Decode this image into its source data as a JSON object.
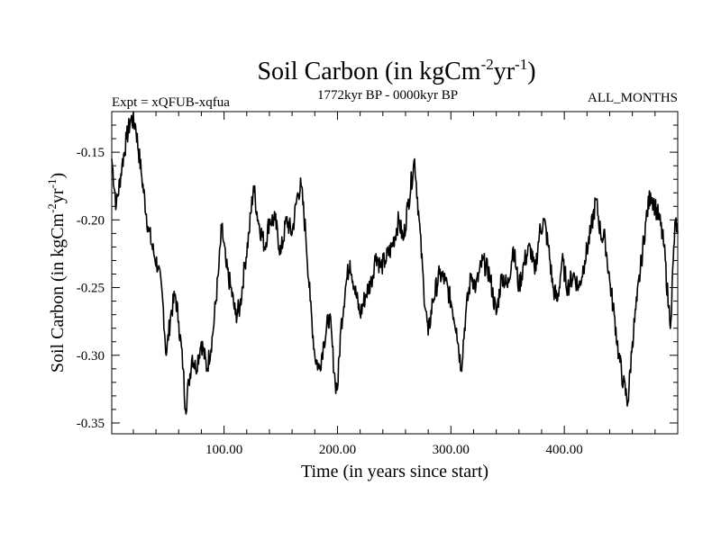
{
  "chart_data": {
    "type": "line",
    "title": "Soil Carbon (in kgCm",
    "title_units": {
      "sup1": "-2",
      "mid": "yr",
      "sup2": "-1",
      "end": ")"
    },
    "subtitle_left": "Expt = xQFUB-xqfua",
    "subtitle_center": "1772kyr BP - 0000kyr BP",
    "subtitle_right": "ALL_MONTHS",
    "xlabel": "Time (in years since start)",
    "ylabel": "Soil Carbon (in kgCm",
    "ylabel_units": {
      "sup1": "-2",
      "mid": "yr",
      "sup2": "-1",
      "end": ")"
    },
    "xlim": [
      1,
      500
    ],
    "ylim": [
      -0.358,
      -0.12
    ],
    "x_ticks": [
      100,
      200,
      300,
      400
    ],
    "x_tick_labels": [
      "100.00",
      "200.00",
      "300.00",
      "400.00"
    ],
    "y_ticks": [
      -0.15,
      -0.2,
      -0.25,
      -0.3,
      -0.35
    ],
    "y_tick_labels": [
      "-0.15",
      "-0.20",
      "-0.25",
      "-0.30",
      "-0.35"
    ],
    "x_minor_step": 20,
    "y_minor_step": 0.01,
    "series": [
      {
        "name": "Soil Carbon",
        "color": "#000000",
        "anchors": [
          [
            1,
            -0.155
          ],
          [
            5,
            -0.19
          ],
          [
            10,
            -0.16
          ],
          [
            14,
            -0.14
          ],
          [
            18,
            -0.125
          ],
          [
            22,
            -0.13
          ],
          [
            27,
            -0.165
          ],
          [
            33,
            -0.205
          ],
          [
            38,
            -0.225
          ],
          [
            42,
            -0.235
          ],
          [
            46,
            -0.26
          ],
          [
            49,
            -0.3
          ],
          [
            53,
            -0.27
          ],
          [
            57,
            -0.255
          ],
          [
            60,
            -0.275
          ],
          [
            64,
            -0.31
          ],
          [
            66,
            -0.34
          ],
          [
            69,
            -0.32
          ],
          [
            72,
            -0.3
          ],
          [
            75,
            -0.31
          ],
          [
            80,
            -0.29
          ],
          [
            85,
            -0.31
          ],
          [
            90,
            -0.285
          ],
          [
            95,
            -0.24
          ],
          [
            98,
            -0.205
          ],
          [
            102,
            -0.235
          ],
          [
            106,
            -0.25
          ],
          [
            110,
            -0.27
          ],
          [
            114,
            -0.265
          ],
          [
            118,
            -0.235
          ],
          [
            122,
            -0.21
          ],
          [
            126,
            -0.175
          ],
          [
            130,
            -0.2
          ],
          [
            136,
            -0.22
          ],
          [
            140,
            -0.2
          ],
          [
            145,
            -0.2
          ],
          [
            150,
            -0.225
          ],
          [
            155,
            -0.2
          ],
          [
            160,
            -0.21
          ],
          [
            165,
            -0.18
          ],
          [
            168,
            -0.175
          ],
          [
            172,
            -0.21
          ],
          [
            176,
            -0.26
          ],
          [
            180,
            -0.3
          ],
          [
            184,
            -0.31
          ],
          [
            188,
            -0.29
          ],
          [
            193,
            -0.27
          ],
          [
            198,
            -0.32
          ],
          [
            200,
            -0.325
          ],
          [
            203,
            -0.28
          ],
          [
            207,
            -0.25
          ],
          [
            211,
            -0.23
          ],
          [
            215,
            -0.25
          ],
          [
            220,
            -0.27
          ],
          [
            225,
            -0.255
          ],
          [
            230,
            -0.245
          ],
          [
            234,
            -0.225
          ],
          [
            238,
            -0.235
          ],
          [
            242,
            -0.23
          ],
          [
            248,
            -0.22
          ],
          [
            254,
            -0.2
          ],
          [
            258,
            -0.215
          ],
          [
            262,
            -0.19
          ],
          [
            268,
            -0.155
          ],
          [
            272,
            -0.2
          ],
          [
            276,
            -0.25
          ],
          [
            280,
            -0.285
          ],
          [
            284,
            -0.26
          ],
          [
            290,
            -0.24
          ],
          [
            295,
            -0.245
          ],
          [
            300,
            -0.26
          ],
          [
            305,
            -0.28
          ],
          [
            309,
            -0.31
          ],
          [
            313,
            -0.27
          ],
          [
            318,
            -0.24
          ],
          [
            322,
            -0.25
          ],
          [
            328,
            -0.23
          ],
          [
            334,
            -0.24
          ],
          [
            340,
            -0.27
          ],
          [
            345,
            -0.24
          ],
          [
            350,
            -0.25
          ],
          [
            355,
            -0.22
          ],
          [
            360,
            -0.25
          ],
          [
            365,
            -0.23
          ],
          [
            370,
            -0.22
          ],
          [
            374,
            -0.24
          ],
          [
            378,
            -0.21
          ],
          [
            382,
            -0.2
          ],
          [
            386,
            -0.22
          ],
          [
            390,
            -0.25
          ],
          [
            394,
            -0.26
          ],
          [
            398,
            -0.23
          ],
          [
            403,
            -0.25
          ],
          [
            408,
            -0.24
          ],
          [
            413,
            -0.25
          ],
          [
            418,
            -0.23
          ],
          [
            423,
            -0.21
          ],
          [
            428,
            -0.185
          ],
          [
            432,
            -0.21
          ],
          [
            436,
            -0.215
          ],
          [
            440,
            -0.245
          ],
          [
            444,
            -0.27
          ],
          [
            448,
            -0.3
          ],
          [
            452,
            -0.32
          ],
          [
            456,
            -0.335
          ],
          [
            460,
            -0.29
          ],
          [
            464,
            -0.26
          ],
          [
            468,
            -0.23
          ],
          [
            472,
            -0.2
          ],
          [
            476,
            -0.18
          ],
          [
            480,
            -0.19
          ],
          [
            484,
            -0.2
          ],
          [
            488,
            -0.22
          ],
          [
            492,
            -0.265
          ],
          [
            494,
            -0.275
          ],
          [
            496,
            -0.23
          ],
          [
            498,
            -0.2
          ],
          [
            500,
            -0.21
          ]
        ],
        "noise_amplitude": 0.008,
        "seed": 7
      }
    ]
  }
}
